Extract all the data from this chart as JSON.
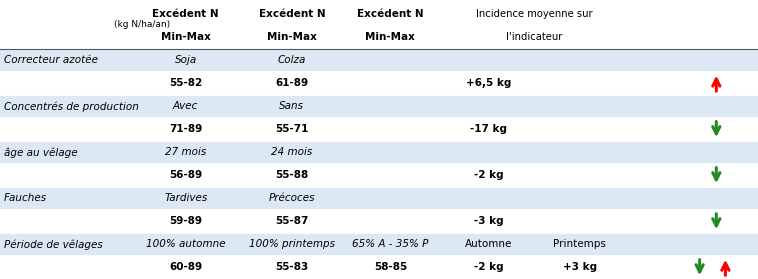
{
  "header_row": {
    "col1": "(kg N/ha/an)",
    "col2_line1": "Excédent N",
    "col2_line2": "Min-Max",
    "col3_line1": "Excédent N",
    "col3_line2": "Min-Max",
    "col4_line1": "Excédent N",
    "col4_line2": "Min-Max",
    "col5_line1": "Incidence moyenne sur",
    "col5_line2": "l'indicateur"
  },
  "rows": [
    {
      "label": "Correcteur azotée",
      "sub1": "Soja",
      "sub2": "Colza",
      "sub3": "",
      "incidence": "",
      "incidence2": "",
      "arrow": "",
      "bg": "#dce9f5"
    },
    {
      "label": "",
      "sub1": "55-82",
      "sub2": "61-89",
      "sub3": "",
      "incidence": "+6,5 kg",
      "incidence2": "",
      "arrow": "up_red",
      "bg": "#ffffff"
    },
    {
      "label": "Concentrés de production",
      "sub1": "Avec",
      "sub2": "Sans",
      "sub3": "",
      "incidence": "",
      "incidence2": "",
      "arrow": "",
      "bg": "#dce9f5"
    },
    {
      "label": "",
      "sub1": "71-89",
      "sub2": "55-71",
      "sub3": "",
      "incidence": "-17 kg",
      "incidence2": "",
      "arrow": "down_green",
      "bg": "#ffffff"
    },
    {
      "label": "âge au vêlage",
      "sub1": "27 mois",
      "sub2": "24 mois",
      "sub3": "",
      "incidence": "",
      "incidence2": "",
      "arrow": "",
      "bg": "#dce9f5"
    },
    {
      "label": "",
      "sub1": "56-89",
      "sub2": "55-88",
      "sub3": "",
      "incidence": "-2 kg",
      "incidence2": "",
      "arrow": "down_green",
      "bg": "#ffffff"
    },
    {
      "label": "Fauches",
      "sub1": "Tardives",
      "sub2": "Précoces",
      "sub3": "",
      "incidence": "",
      "incidence2": "",
      "arrow": "",
      "bg": "#dce9f5"
    },
    {
      "label": "",
      "sub1": "59-89",
      "sub2": "55-87",
      "sub3": "",
      "incidence": "-3 kg",
      "incidence2": "",
      "arrow": "down_green",
      "bg": "#ffffff"
    },
    {
      "label": "Période de vêlages",
      "sub1": "100% automne",
      "sub2": "100% printemps",
      "sub3": "65% A - 35% P",
      "incidence": "Automne",
      "incidence2": "Printemps",
      "arrow": "",
      "bg": "#dce9f5"
    },
    {
      "label": "",
      "sub1": "60-89",
      "sub2": "55-83",
      "sub3": "58-85",
      "incidence": "-2 kg",
      "incidence2": "+3 kg",
      "arrow": "down_green_up_red",
      "bg": "#ffffff"
    }
  ],
  "fig_width": 7.58,
  "fig_height": 2.79,
  "bg_color": "#ffffff"
}
